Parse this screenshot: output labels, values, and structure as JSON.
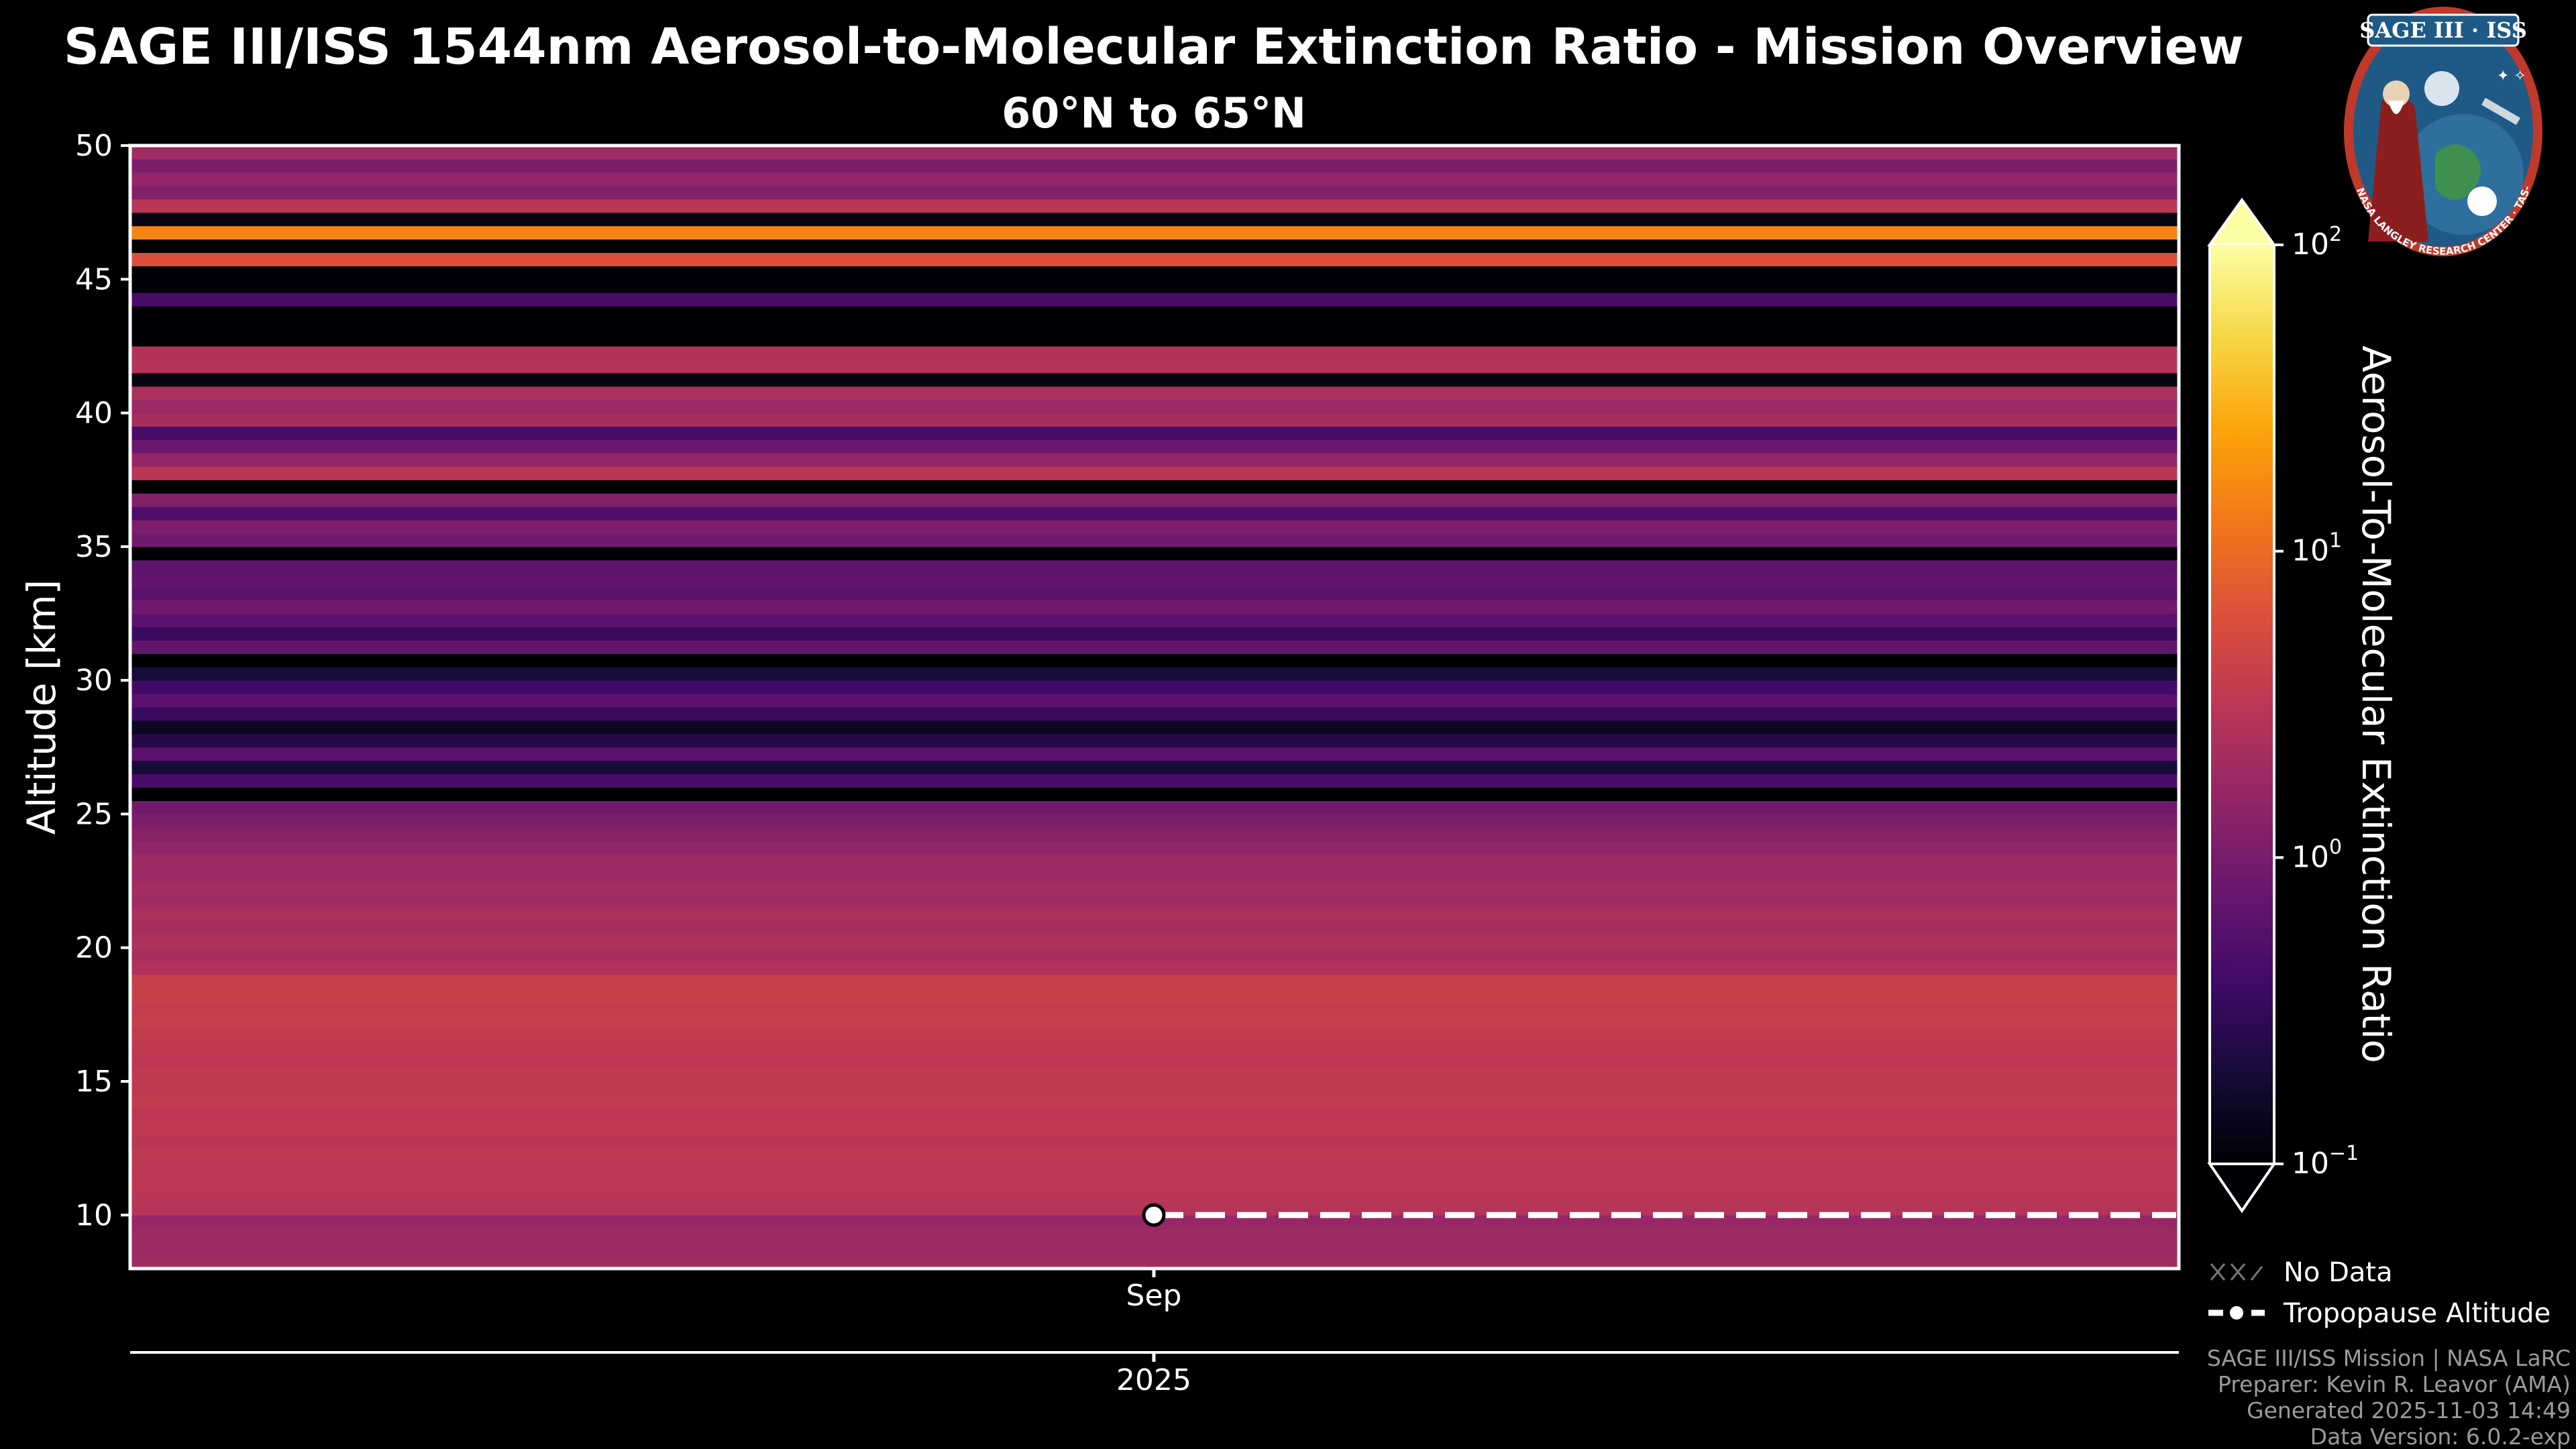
{
  "chart_data": {
    "type": "heatmap",
    "title": "SAGE III/ISS 1544nm Aerosol-to-Molecular Extinction Ratio - Mission Overview",
    "subtitle": "60°N to 65°N",
    "ylabel": "Altitude [km]",
    "ylim": [
      8,
      50
    ],
    "yticks": [
      "10",
      "15",
      "20",
      "25",
      "30",
      "35",
      "40",
      "45",
      "50"
    ],
    "x_month_label": "Sep",
    "x_year_label": "2025",
    "colorbar": {
      "label": "Aerosol-To-Molecular Extinction Ratio",
      "scale": "log",
      "colormap": "inferno",
      "range": [
        0.1,
        100
      ],
      "tick_bases": [
        "10",
        "10",
        "10",
        "10"
      ],
      "tick_exponents": [
        "−1",
        "0",
        "1",
        "2"
      ],
      "tick_values": [
        0.1,
        1,
        10,
        100
      ]
    },
    "profile": {
      "altitude_step_km": 0.5,
      "altitudes_km": [
        8.25,
        8.75,
        9.25,
        9.75,
        10.25,
        10.75,
        11.25,
        11.75,
        12.25,
        12.75,
        13.25,
        13.75,
        14.25,
        14.75,
        15.25,
        15.75,
        16.25,
        16.75,
        17.25,
        17.75,
        18.25,
        18.75,
        19.25,
        19.75,
        20.25,
        20.75,
        21.25,
        21.75,
        22.25,
        22.75,
        23.25,
        23.75,
        24.25,
        24.75,
        25.25,
        25.75,
        26.25,
        26.75,
        27.25,
        27.75,
        28.25,
        28.75,
        29.25,
        29.75,
        30.25,
        30.75,
        31.25,
        31.75,
        32.25,
        32.75,
        33.25,
        33.75,
        34.25,
        34.75,
        35.25,
        35.75,
        36.25,
        36.75,
        37.25,
        37.75,
        38.25,
        38.75,
        39.25,
        39.75,
        40.25,
        40.75,
        41.25,
        41.75,
        42.25,
        42.75,
        43.25,
        43.75,
        44.25,
        44.75,
        45.25,
        45.75,
        46.25,
        46.75,
        47.25,
        47.75,
        48.25,
        48.75,
        49.25,
        49.75
      ],
      "ratios": [
        2.0,
        1.8,
        1.9,
        1.7,
        2.8,
        3.0,
        3.2,
        3.1,
        3.3,
        3.0,
        3.4,
        3.2,
        3.6,
        3.3,
        3.5,
        3.2,
        3.4,
        3.6,
        4.0,
        3.8,
        4.2,
        4.0,
        2.6,
        2.3,
        2.5,
        2.2,
        2.4,
        2.0,
        2.1,
        1.8,
        1.9,
        1.5,
        1.3,
        1.1,
        0.9,
        0.1,
        0.45,
        0.2,
        0.6,
        0.25,
        0.15,
        0.35,
        0.6,
        0.4,
        0.2,
        0.1,
        0.7,
        0.35,
        0.6,
        0.9,
        0.6,
        0.7,
        0.65,
        0.1,
        0.9,
        1.1,
        0.5,
        1.2,
        0.1,
        3.0,
        1.6,
        0.8,
        0.45,
        2.2,
        1.8,
        2.4,
        0.12,
        2.8,
        2.7,
        0.1,
        0.09,
        0.1,
        0.45,
        0.11,
        0.1,
        6.0,
        0.1,
        15.0,
        0.12,
        3.0,
        1.2,
        1.6,
        1.1,
        2.0
      ]
    },
    "tropopause": {
      "altitude_km": 10,
      "start_month_label": "Sep"
    },
    "legend": [
      {
        "label": "No Data"
      },
      {
        "label": "Tropopause Altitude"
      }
    ]
  },
  "logo": {
    "title_text": "SAGE III · ISS",
    "ring_text": "BALL · NASA LANGLEY RESEARCH CENTER · TAS-I · ESA"
  },
  "footer": {
    "line1": "SAGE III/ISS Mission | NASA LaRC",
    "line2": "Preparer: Kevin R. Leavor (AMA)",
    "line3": "Generated 2025-11-03 14:49",
    "line4": "Data Version: 6.0.2-exp"
  },
  "colors": {
    "background": "#000000",
    "axis": "#ffffff",
    "footer": "#9a9a9a",
    "logo_blue": "#1f5a86",
    "logo_red": "#c0392b"
  }
}
